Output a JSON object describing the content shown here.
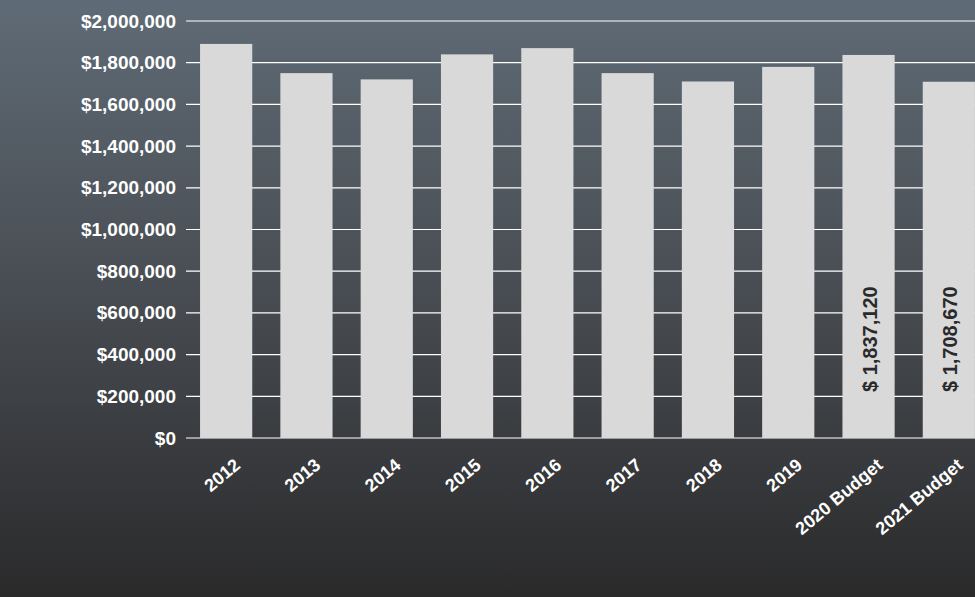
{
  "chart_data": {
    "type": "bar",
    "categories": [
      "2012",
      "2013",
      "2014",
      "2015",
      "2016",
      "2017",
      "2018",
      "2019",
      "2020 Budget",
      "2021 Budget"
    ],
    "values": [
      1890000,
      1750000,
      1720000,
      1840000,
      1870000,
      1750000,
      1710000,
      1780000,
      1837120,
      1708670
    ],
    "value_labels": [
      null,
      null,
      null,
      null,
      null,
      null,
      null,
      null,
      "$ 1,837,120",
      "$ 1,708,670"
    ],
    "data_labels": true,
    "color": "#d9d9d9",
    "ylim": [
      0,
      2000000
    ],
    "yticks": [
      {
        "value": 0,
        "label": "$0"
      },
      {
        "value": 200000,
        "label": "$200,000"
      },
      {
        "value": 400000,
        "label": "$400,000"
      },
      {
        "value": 600000,
        "label": "$600,000"
      },
      {
        "value": 800000,
        "label": "$800,000"
      },
      {
        "value": 1000000,
        "label": "$1,000,000"
      },
      {
        "value": 1200000,
        "label": "$1,200,000"
      },
      {
        "value": 1400000,
        "label": "$1,400,000"
      },
      {
        "value": 1600000,
        "label": "$1,600,000"
      },
      {
        "value": 1800000,
        "label": "$1,800,000"
      },
      {
        "value": 2000000,
        "label": "$2,000,000"
      }
    ],
    "grid": true
  }
}
